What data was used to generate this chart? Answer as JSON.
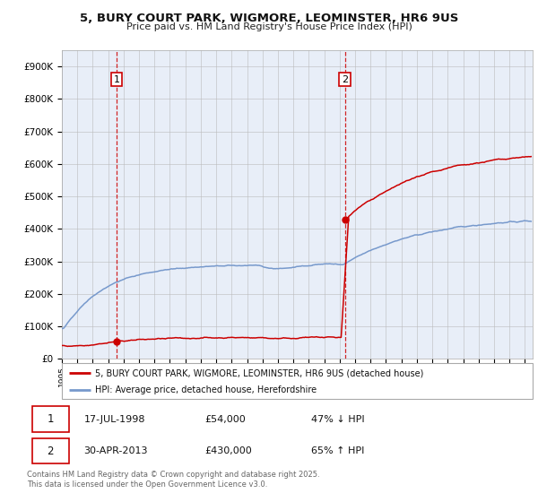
{
  "title_line1": "5, BURY COURT PARK, WIGMORE, LEOMINSTER, HR6 9US",
  "title_line2": "Price paid vs. HM Land Registry's House Price Index (HPI)",
  "bg_color": "#e8eef8",
  "red_color": "#cc0000",
  "blue_color": "#7799cc",
  "sale1_year": 1998.54,
  "sale1_price": 54000,
  "sale2_year": 2013.33,
  "sale2_price": 430000,
  "legend_red": "5, BURY COURT PARK, WIGMORE, LEOMINSTER, HR6 9US (detached house)",
  "legend_blue": "HPI: Average price, detached house, Herefordshire",
  "footer": "Contains HM Land Registry data © Crown copyright and database right 2025.\nThis data is licensed under the Open Government Licence v3.0.",
  "table_row1": [
    "1",
    "17-JUL-1998",
    "£54,000",
    "47% ↓ HPI"
  ],
  "table_row2": [
    "2",
    "30-APR-2013",
    "£430,000",
    "65% ↑ HPI"
  ],
  "ylim": [
    0,
    950000
  ],
  "xlim_start": 1995.0,
  "xlim_end": 2025.5,
  "yticks": [
    0,
    100000,
    200000,
    300000,
    400000,
    500000,
    600000,
    700000,
    800000,
    900000
  ]
}
